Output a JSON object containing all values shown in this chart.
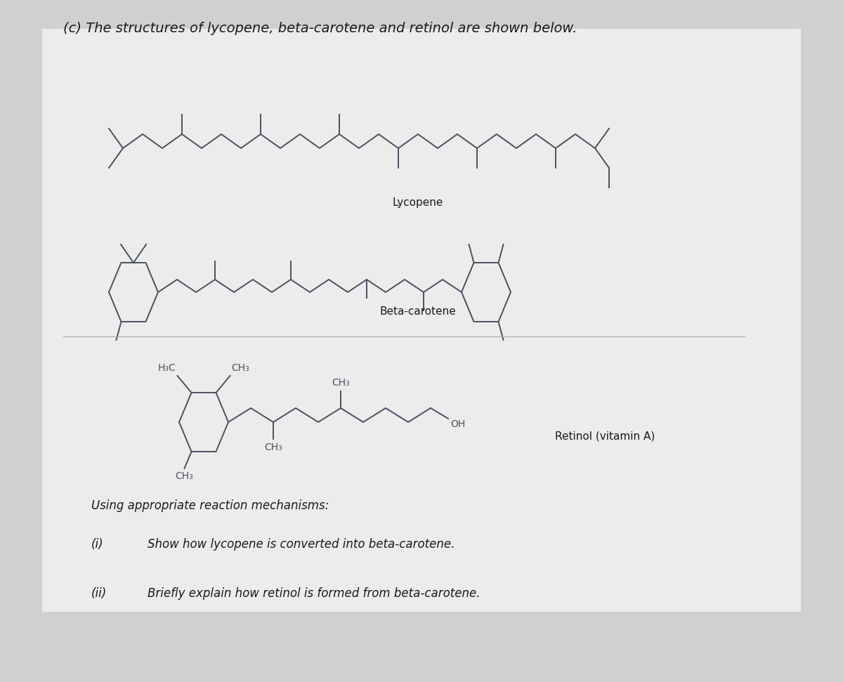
{
  "bg_color": "#d0d0d0",
  "panel_color": "#e8e8e8",
  "line_color": "#4a5060",
  "text_color": "#1a1a1a",
  "title": "(c) The structures of lycopene, beta-carotene and retinol are shown below.",
  "lycopene_label": "Lycopene",
  "betacarotene_label": "Beta-carotene",
  "retinol_label": "Retinol (vitamin A)",
  "instructions": "Using appropriate reaction mechanisms:",
  "q1_num": "(i)",
  "q1_text": "Show how lycopene is converted into beta-carotene.",
  "q2_num": "(ii)",
  "q2_text": "Briefly explain how retinol is formed from beta-carotene.",
  "font_size_title": 14,
  "font_size_label": 10,
  "font_size_text": 12,
  "font_size_chem": 9
}
